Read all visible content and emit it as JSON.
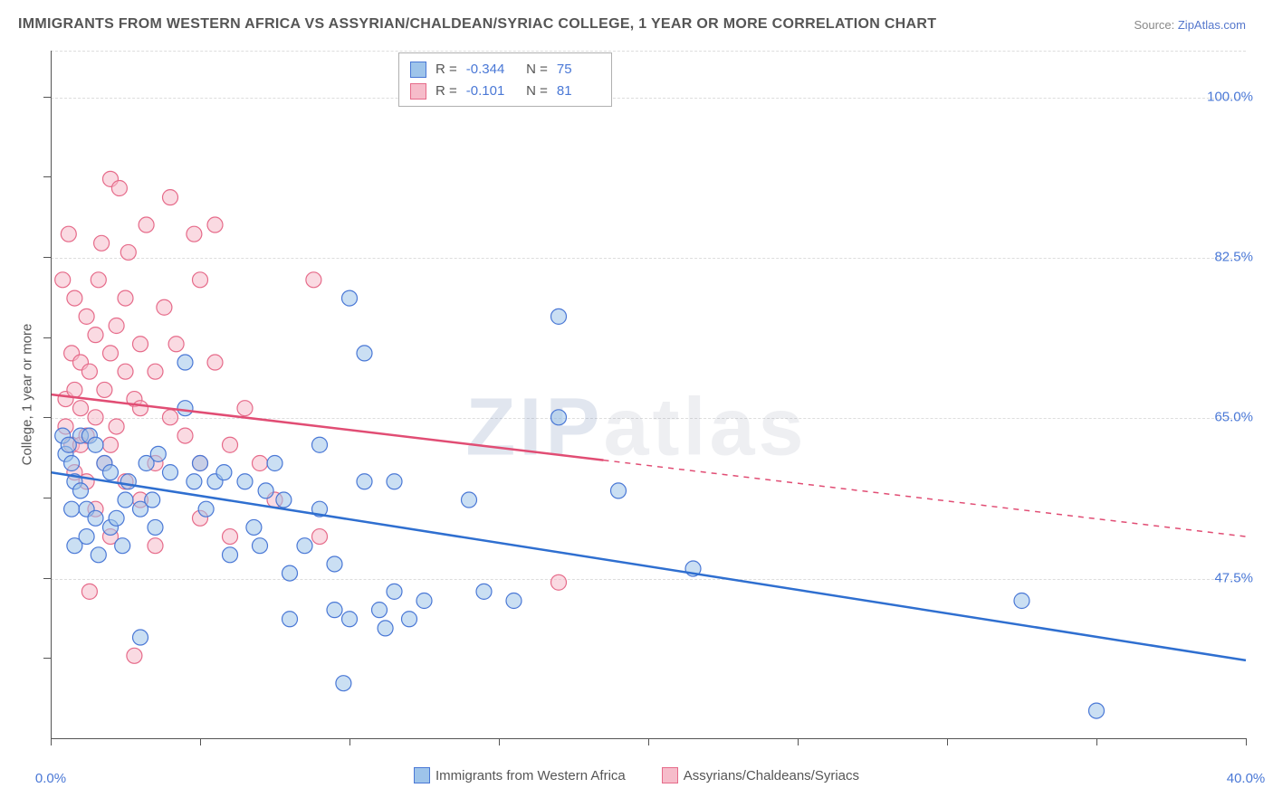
{
  "title": "IMMIGRANTS FROM WESTERN AFRICA VS ASSYRIAN/CHALDEAN/SYRIAC COLLEGE, 1 YEAR OR MORE CORRELATION CHART",
  "source_label": "Source: ",
  "source_link": "ZipAtlas.com",
  "ylabel": "College, 1 year or more",
  "watermark_a": "ZIP",
  "watermark_b": "atlas",
  "chart": {
    "type": "scatter",
    "background_color": "#ffffff",
    "grid_color": "#dddddd",
    "axis_color": "#555555",
    "xlim": [
      0,
      40
    ],
    "ylim": [
      30,
      105
    ],
    "xticks": [
      0,
      40
    ],
    "xtick_labels": [
      "0.0%",
      "40.0%"
    ],
    "xtick_minors": [
      5,
      10,
      15,
      20,
      25,
      30,
      35
    ],
    "yticks": [
      47.5,
      65.0,
      82.5,
      100.0
    ],
    "ytick_labels": [
      "47.5%",
      "65.0%",
      "82.5%",
      "100.0%"
    ],
    "ytick_minors": [
      38.75,
      56.25,
      73.75,
      91.25
    ],
    "marker_radius": 8.5,
    "marker_opacity": 0.55,
    "line_width": 2.5,
    "axis_fontsize": 15,
    "title_fontsize": 16,
    "series": [
      {
        "id": "blue",
        "label": "Immigrants from Western Africa",
        "R": "-0.344",
        "N": "75",
        "fill": "#9ec4ea",
        "stroke": "#4a78d6",
        "line_color": "#2f6fd0",
        "trend": {
          "x1": 0.0,
          "y1": 59.0,
          "x2": 40.0,
          "y2": 38.5,
          "dash_from_x": 40.0
        },
        "points": [
          [
            0.4,
            63
          ],
          [
            0.5,
            61
          ],
          [
            0.6,
            62
          ],
          [
            0.7,
            60
          ],
          [
            0.7,
            55
          ],
          [
            0.8,
            58
          ],
          [
            0.8,
            51
          ],
          [
            1.0,
            63
          ],
          [
            1.0,
            57
          ],
          [
            1.2,
            55
          ],
          [
            1.2,
            52
          ],
          [
            1.3,
            63
          ],
          [
            1.5,
            62
          ],
          [
            1.5,
            54
          ],
          [
            1.6,
            50
          ],
          [
            1.8,
            60
          ],
          [
            2.0,
            59
          ],
          [
            2.0,
            53
          ],
          [
            2.2,
            54
          ],
          [
            2.4,
            51
          ],
          [
            2.5,
            56
          ],
          [
            2.6,
            58
          ],
          [
            3.0,
            55
          ],
          [
            3.0,
            41
          ],
          [
            3.2,
            60
          ],
          [
            3.4,
            56
          ],
          [
            3.5,
            53
          ],
          [
            3.6,
            61
          ],
          [
            4.0,
            59
          ],
          [
            4.5,
            71
          ],
          [
            4.5,
            66
          ],
          [
            4.8,
            58
          ],
          [
            5.0,
            60
          ],
          [
            5.2,
            55
          ],
          [
            5.5,
            58
          ],
          [
            5.8,
            59
          ],
          [
            6.0,
            50
          ],
          [
            6.5,
            58
          ],
          [
            6.8,
            53
          ],
          [
            7.0,
            51
          ],
          [
            7.2,
            57
          ],
          [
            7.5,
            60
          ],
          [
            7.8,
            56
          ],
          [
            8.0,
            48
          ],
          [
            8.0,
            43
          ],
          [
            8.5,
            51
          ],
          [
            9.0,
            62
          ],
          [
            9.0,
            55
          ],
          [
            9.5,
            49
          ],
          [
            9.5,
            44
          ],
          [
            9.8,
            36
          ],
          [
            10.0,
            43
          ],
          [
            10.0,
            78
          ],
          [
            10.5,
            58
          ],
          [
            10.5,
            72
          ],
          [
            11.0,
            44
          ],
          [
            11.2,
            42
          ],
          [
            11.5,
            58
          ],
          [
            11.5,
            46
          ],
          [
            12.0,
            43
          ],
          [
            12.5,
            45
          ],
          [
            14.0,
            56
          ],
          [
            14.5,
            46
          ],
          [
            15.5,
            45
          ],
          [
            17.0,
            65
          ],
          [
            17.0,
            76
          ],
          [
            19.0,
            57
          ],
          [
            21.5,
            48.5
          ],
          [
            32.5,
            45
          ],
          [
            35.0,
            33
          ]
        ]
      },
      {
        "id": "pink",
        "label": "Assyrians/Chaldeans/Syriacs",
        "R": "-0.101",
        "N": "81",
        "fill": "#f6bcca",
        "stroke": "#e66b8a",
        "line_color": "#e14d74",
        "trend": {
          "x1": 0.0,
          "y1": 67.5,
          "x2": 40.0,
          "y2": 52.0,
          "dash_from_x": 18.5
        },
        "points": [
          [
            0.4,
            80
          ],
          [
            0.5,
            67
          ],
          [
            0.5,
            64
          ],
          [
            0.6,
            85
          ],
          [
            0.7,
            72
          ],
          [
            0.7,
            62
          ],
          [
            0.8,
            78
          ],
          [
            0.8,
            68
          ],
          [
            0.8,
            59
          ],
          [
            1.0,
            66
          ],
          [
            1.0,
            71
          ],
          [
            1.0,
            62
          ],
          [
            1.2,
            76
          ],
          [
            1.2,
            63
          ],
          [
            1.2,
            58
          ],
          [
            1.3,
            70
          ],
          [
            1.3,
            46
          ],
          [
            1.5,
            74
          ],
          [
            1.5,
            65
          ],
          [
            1.5,
            55
          ],
          [
            1.6,
            80
          ],
          [
            1.7,
            84
          ],
          [
            1.8,
            68
          ],
          [
            1.8,
            60
          ],
          [
            2.0,
            91
          ],
          [
            2.0,
            72
          ],
          [
            2.0,
            62
          ],
          [
            2.0,
            52
          ],
          [
            2.2,
            75
          ],
          [
            2.2,
            64
          ],
          [
            2.3,
            90
          ],
          [
            2.5,
            78
          ],
          [
            2.5,
            70
          ],
          [
            2.5,
            58
          ],
          [
            2.6,
            83
          ],
          [
            2.8,
            67
          ],
          [
            2.8,
            39
          ],
          [
            3.0,
            73
          ],
          [
            3.0,
            66
          ],
          [
            3.0,
            56
          ],
          [
            3.2,
            86
          ],
          [
            3.5,
            70
          ],
          [
            3.5,
            60
          ],
          [
            3.5,
            51
          ],
          [
            3.8,
            77
          ],
          [
            4.0,
            89
          ],
          [
            4.0,
            65
          ],
          [
            4.2,
            73
          ],
          [
            4.5,
            63
          ],
          [
            4.8,
            85
          ],
          [
            5.0,
            80
          ],
          [
            5.0,
            60
          ],
          [
            5.0,
            54
          ],
          [
            5.5,
            86
          ],
          [
            5.5,
            71
          ],
          [
            6.0,
            62
          ],
          [
            6.0,
            52
          ],
          [
            6.5,
            66
          ],
          [
            7.0,
            60
          ],
          [
            7.5,
            56
          ],
          [
            8.8,
            80
          ],
          [
            9.0,
            52
          ],
          [
            17.0,
            47
          ]
        ]
      }
    ]
  }
}
